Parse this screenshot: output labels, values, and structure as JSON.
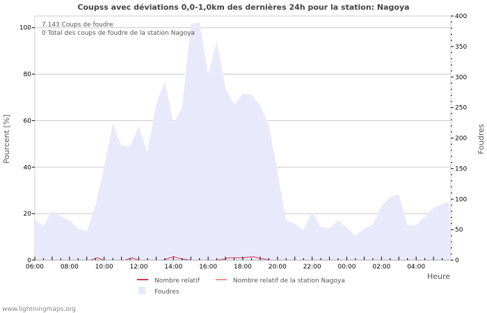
{
  "chart_data": {
    "type": "area",
    "title": "Coupss avec déviations 0,0-1,0km des dernières 24h pour la station: Nagoya",
    "xlabel": "Heure",
    "ylabel_left": "Pourcent   [%]",
    "ylabel_right": "Foudres",
    "x_ticks": [
      "06:00",
      "08:00",
      "10:00",
      "12:00",
      "14:00",
      "16:00",
      "18:00",
      "20:00",
      "22:00",
      "00:00",
      "02:00",
      "04:00"
    ],
    "y_left_ticks": [
      "0",
      "20",
      "40",
      "60",
      "80",
      "100"
    ],
    "y_right_ticks": [
      "0",
      "50",
      "100",
      "150",
      "200",
      "250",
      "300",
      "350",
      "400"
    ],
    "y_left_range": [
      0,
      105
    ],
    "y_right_range": [
      0,
      400
    ],
    "grid": true,
    "info_lines": [
      "7.143  Coups de foudre",
      "0 Total des coups de foudre de la station Nagoya"
    ],
    "legend": [
      "Nombre relatif",
      "Nombre relatif de la station Nagoya",
      "Foudres"
    ],
    "footer": "www.lightningmaps.org",
    "colors": {
      "area": "#e9e9fc",
      "relative": "#d9304a",
      "station": "#f59090",
      "grid": "#c8c8c8"
    },
    "foudres": {
      "x_hours": [
        0,
        0.5,
        1,
        1.5,
        2,
        2.5,
        3,
        3.5,
        4,
        4.5,
        5,
        5.5,
        6,
        6.5,
        7,
        7.5,
        8,
        8.5,
        9,
        9.5,
        10,
        10.5,
        11,
        11.5,
        12,
        12.5,
        13,
        13.5,
        14,
        14.5,
        15,
        15.5,
        16,
        16.5,
        17,
        17.5,
        18,
        18.5,
        19,
        19.5,
        20,
        20.5,
        21,
        21.5,
        22,
        22.5,
        23,
        23.9
      ],
      "values": [
        66,
        56,
        81,
        72,
        65,
        52,
        47,
        90,
        152,
        224,
        187,
        187,
        219,
        177,
        255,
        293,
        224,
        250,
        386,
        390,
        304,
        359,
        281,
        255,
        273,
        271,
        254,
        221,
        144,
        65,
        60,
        49,
        79,
        54,
        52,
        65,
        54,
        40,
        52,
        58,
        89,
        103,
        108,
        57,
        57,
        72,
        85,
        97
      ]
    },
    "relative_segments": [
      {
        "x_hours": [
          3.2,
          3.6,
          4.0
        ],
        "values": [
          0,
          1,
          0
        ]
      },
      {
        "x_hours": [
          5.2,
          5.6,
          6.0
        ],
        "values": [
          0,
          1,
          0
        ]
      },
      {
        "x_hours": [
          7.4,
          8.0,
          8.5,
          9.0,
          9.6
        ],
        "values": [
          0,
          1.5,
          0.5,
          0,
          0
        ]
      },
      {
        "x_hours": [
          10.4,
          10.8,
          11.2,
          12.0,
          12.6,
          13.0,
          13.6
        ],
        "values": [
          0,
          0.3,
          1,
          1,
          1.5,
          0.8,
          0
        ]
      }
    ]
  }
}
